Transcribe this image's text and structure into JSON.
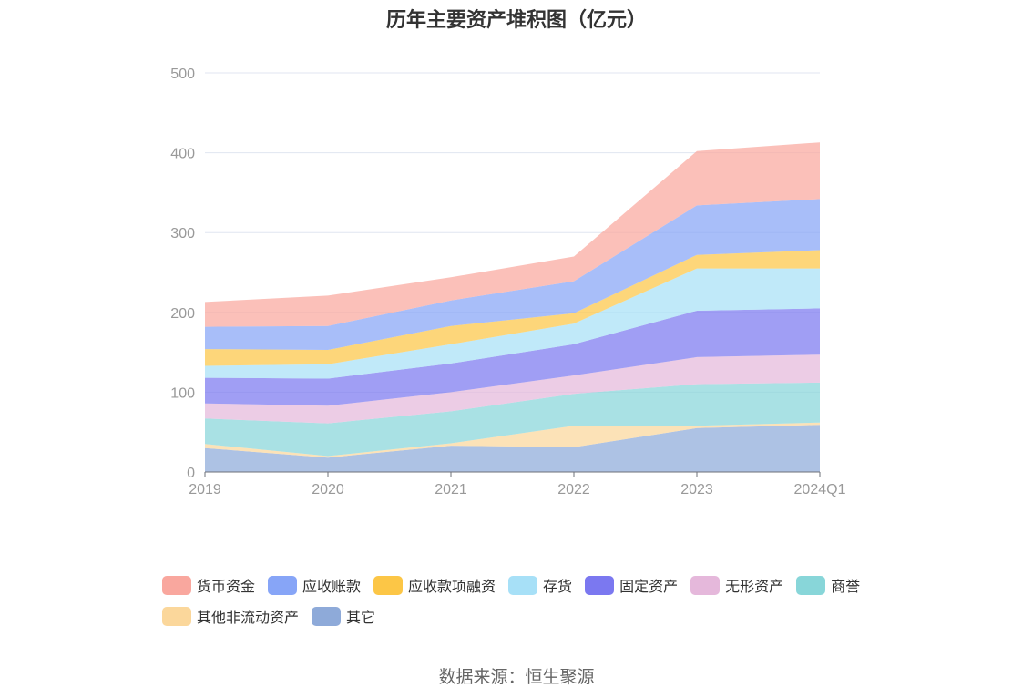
{
  "colors": {
    "货币资金": "#f9a79e",
    "应收账款": "#87a5f7",
    "应收款项融资": "#fcc646",
    "存货": "#a7e0f7",
    "固定资产": "#7b78f0",
    "无形资产": "#e5b8db",
    "商誉": "#88d6d9",
    "其他非流动资产": "#fbd79b",
    "其它": "#8eaad9"
  },
  "chart_data": {
    "type": "area",
    "stacked": true,
    "title": "历年主要资产堆积图（亿元）",
    "categories": [
      "2019",
      "2020",
      "2021",
      "2022",
      "2023",
      "2024Q1"
    ],
    "ylim": [
      0,
      500
    ],
    "yticks": [
      0,
      100,
      200,
      300,
      400,
      500
    ],
    "grid": true,
    "legend_position": "bottom",
    "series": [
      {
        "name": "其它",
        "values": [
          30,
          18,
          33,
          31,
          55,
          59
        ]
      },
      {
        "name": "其他非流动资产",
        "values": [
          5,
          2,
          3,
          27,
          3,
          3
        ]
      },
      {
        "name": "商誉",
        "values": [
          32,
          41,
          40,
          40,
          52,
          50
        ]
      },
      {
        "name": "无形资产",
        "values": [
          19,
          22,
          24,
          23,
          34,
          35
        ]
      },
      {
        "name": "固定资产",
        "values": [
          32,
          34,
          36,
          39,
          58,
          58
        ]
      },
      {
        "name": "存货",
        "values": [
          15,
          18,
          24,
          26,
          53,
          50
        ]
      },
      {
        "name": "应收款项融资",
        "values": [
          21,
          18,
          23,
          13,
          17,
          23
        ]
      },
      {
        "name": "应收账款",
        "values": [
          28,
          30,
          32,
          40,
          62,
          64
        ]
      },
      {
        "name": "货币资金",
        "values": [
          31,
          38,
          29,
          31,
          68,
          71
        ]
      }
    ]
  },
  "legend": {
    "row1": [
      "货币资金",
      "应收账款",
      "应收款项融资",
      "存货",
      "固定资产",
      "无形资产",
      "商誉"
    ],
    "row2": [
      "其他非流动资产",
      "其它"
    ]
  },
  "source": "数据来源：恒生聚源"
}
